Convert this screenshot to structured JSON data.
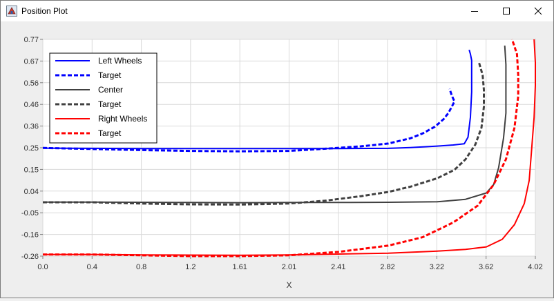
{
  "window": {
    "title": "Position Plot",
    "icons": {
      "app": "java-app-icon",
      "minimize": "minimize-icon",
      "maximize": "maximize-icon",
      "close": "close-icon"
    }
  },
  "chart_data": {
    "type": "line",
    "title": "",
    "xlabel": "X",
    "ylabel": "",
    "xlim": [
      0.0,
      4.02
    ],
    "ylim": [
      -0.26,
      0.77
    ],
    "x_ticks": [
      "0.0",
      "0.4",
      "0.8",
      "1.2",
      "1.61",
      "2.01",
      "2.41",
      "2.82",
      "3.22",
      "3.62",
      "4.02"
    ],
    "y_ticks": [
      "-0.26",
      "-0.16",
      "-0.05",
      "0.04",
      "0.15",
      "0.25",
      "0.36",
      "0.46",
      "0.56",
      "0.67",
      "0.77"
    ],
    "grid": true,
    "legend_position": "top-left",
    "series": [
      {
        "name": "Left Wheels",
        "color": "#0000ff",
        "dashed": false,
        "points": [
          [
            0.0,
            0.253
          ],
          [
            0.4,
            0.252
          ],
          [
            0.8,
            0.251
          ],
          [
            1.2,
            0.251
          ],
          [
            1.61,
            0.251
          ],
          [
            2.01,
            0.251
          ],
          [
            2.41,
            0.251
          ],
          [
            2.82,
            0.252
          ],
          [
            3.0,
            0.256
          ],
          [
            3.22,
            0.263
          ],
          [
            3.35,
            0.268
          ],
          [
            3.44,
            0.274
          ],
          [
            3.47,
            0.305
          ],
          [
            3.49,
            0.4
          ],
          [
            3.5,
            0.52
          ],
          [
            3.5,
            0.6
          ],
          [
            3.5,
            0.67
          ],
          [
            3.49,
            0.7
          ],
          [
            3.48,
            0.72
          ]
        ]
      },
      {
        "name": "Target",
        "color": "#0000ff",
        "dashed": true,
        "points": [
          [
            0.0,
            0.254
          ],
          [
            0.4,
            0.249
          ],
          [
            0.8,
            0.244
          ],
          [
            1.2,
            0.24
          ],
          [
            1.61,
            0.238
          ],
          [
            2.01,
            0.24
          ],
          [
            2.3,
            0.25
          ],
          [
            2.6,
            0.262
          ],
          [
            2.82,
            0.275
          ],
          [
            3.0,
            0.3
          ],
          [
            3.1,
            0.323
          ],
          [
            3.2,
            0.355
          ],
          [
            3.27,
            0.39
          ],
          [
            3.31,
            0.42
          ],
          [
            3.34,
            0.452
          ],
          [
            3.36,
            0.475
          ],
          [
            3.34,
            0.5
          ],
          [
            3.32,
            0.535
          ]
        ]
      },
      {
        "name": "Center",
        "color": "#404040",
        "dashed": false,
        "points": [
          [
            0.0,
            -0.003
          ],
          [
            0.4,
            -0.003
          ],
          [
            0.8,
            -0.004
          ],
          [
            1.2,
            -0.005
          ],
          [
            1.61,
            -0.006
          ],
          [
            2.01,
            -0.005
          ],
          [
            2.41,
            -0.005
          ],
          [
            2.82,
            -0.004
          ],
          [
            3.22,
            -0.002
          ],
          [
            3.45,
            0.01
          ],
          [
            3.62,
            0.04
          ],
          [
            3.68,
            0.08
          ],
          [
            3.72,
            0.16
          ],
          [
            3.76,
            0.3
          ],
          [
            3.78,
            0.42
          ],
          [
            3.78,
            0.55
          ],
          [
            3.78,
            0.65
          ],
          [
            3.77,
            0.74
          ]
        ]
      },
      {
        "name": "Target",
        "color": "#404040",
        "dashed": true,
        "points": [
          [
            0.0,
            -0.004
          ],
          [
            0.4,
            -0.004
          ],
          [
            0.8,
            -0.01
          ],
          [
            1.2,
            -0.014
          ],
          [
            1.61,
            -0.015
          ],
          [
            2.01,
            -0.01
          ],
          [
            2.3,
            0.003
          ],
          [
            2.6,
            0.025
          ],
          [
            2.82,
            0.045
          ],
          [
            3.0,
            0.07
          ],
          [
            3.22,
            0.11
          ],
          [
            3.36,
            0.15
          ],
          [
            3.45,
            0.2
          ],
          [
            3.53,
            0.27
          ],
          [
            3.58,
            0.35
          ],
          [
            3.6,
            0.45
          ],
          [
            3.6,
            0.53
          ],
          [
            3.59,
            0.6
          ],
          [
            3.56,
            0.66
          ]
        ]
      },
      {
        "name": "Right Wheels",
        "color": "#ff0000",
        "dashed": false,
        "points": [
          [
            0.0,
            -0.252
          ],
          [
            0.4,
            -0.252
          ],
          [
            0.8,
            -0.254
          ],
          [
            1.2,
            -0.255
          ],
          [
            1.61,
            -0.256
          ],
          [
            2.01,
            -0.254
          ],
          [
            2.41,
            -0.25
          ],
          [
            2.82,
            -0.246
          ],
          [
            3.22,
            -0.236
          ],
          [
            3.45,
            -0.228
          ],
          [
            3.62,
            -0.216
          ],
          [
            3.75,
            -0.18
          ],
          [
            3.85,
            -0.11
          ],
          [
            3.93,
            -0.01
          ],
          [
            3.97,
            0.1
          ],
          [
            3.99,
            0.25
          ],
          [
            4.01,
            0.4
          ],
          [
            4.02,
            0.55
          ],
          [
            4.02,
            0.66
          ],
          [
            4.01,
            0.77
          ]
        ]
      },
      {
        "name": "Target",
        "color": "#ff0000",
        "dashed": true,
        "points": [
          [
            0.0,
            -0.252
          ],
          [
            0.4,
            -0.252
          ],
          [
            0.8,
            -0.256
          ],
          [
            1.2,
            -0.26
          ],
          [
            1.61,
            -0.26
          ],
          [
            2.01,
            -0.256
          ],
          [
            2.41,
            -0.24
          ],
          [
            2.82,
            -0.21
          ],
          [
            3.1,
            -0.17
          ],
          [
            3.35,
            -0.1
          ],
          [
            3.55,
            -0.02
          ],
          [
            3.68,
            0.08
          ],
          [
            3.78,
            0.2
          ],
          [
            3.85,
            0.35
          ],
          [
            3.88,
            0.5
          ],
          [
            3.88,
            0.6
          ],
          [
            3.87,
            0.7
          ],
          [
            3.83,
            0.77
          ]
        ]
      }
    ]
  }
}
